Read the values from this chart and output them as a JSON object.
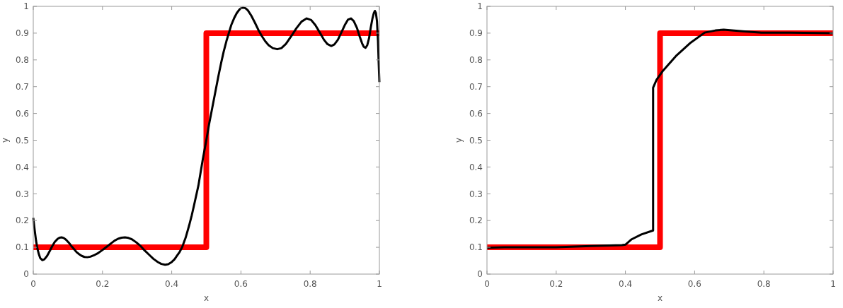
{
  "chart_data": [
    {
      "type": "line",
      "xlabel": "x",
      "ylabel": "y",
      "xlim": [
        0,
        1
      ],
      "ylim": [
        0,
        1
      ],
      "xticks": [
        0,
        0.2,
        0.4,
        0.6,
        0.8,
        1
      ],
      "yticks": [
        0,
        0.1,
        0.2,
        0.3,
        0.4,
        0.5,
        0.6,
        0.7,
        0.8,
        0.9,
        1
      ],
      "series": [
        {
          "type": "step",
          "color": "#ff0000",
          "x": [
            0,
            0.5,
            1
          ],
          "values": [
            0.1,
            0.9,
            0.9
          ]
        },
        {
          "type": "line",
          "color": "#000000",
          "x": [
            0,
            0.004,
            0.008,
            0.012,
            0.016,
            0.02,
            0.026,
            0.032,
            0.04,
            0.048,
            0.055,
            0.062,
            0.07,
            0.076,
            0.082,
            0.088,
            0.095,
            0.103,
            0.11,
            0.118,
            0.125,
            0.133,
            0.14,
            0.148,
            0.156,
            0.165,
            0.175,
            0.188,
            0.2,
            0.213,
            0.225,
            0.235,
            0.245,
            0.255,
            0.265,
            0.275,
            0.285,
            0.297,
            0.31,
            0.322,
            0.335,
            0.347,
            0.36,
            0.37,
            0.381,
            0.39,
            0.4,
            0.408,
            0.415,
            0.423,
            0.43,
            0.44,
            0.45,
            0.458,
            0.465,
            0.477,
            0.49,
            0.5,
            0.508,
            0.517,
            0.526,
            0.535,
            0.543,
            0.55,
            0.558,
            0.565,
            0.572,
            0.58,
            0.588,
            0.595,
            0.6,
            0.606,
            0.613,
            0.62,
            0.63,
            0.64,
            0.65,
            0.66,
            0.67,
            0.68,
            0.692,
            0.705,
            0.717,
            0.73,
            0.745,
            0.76,
            0.775,
            0.79,
            0.803,
            0.815,
            0.828,
            0.84,
            0.85,
            0.861,
            0.87,
            0.88,
            0.89,
            0.9,
            0.909,
            0.918,
            0.926,
            0.935,
            0.943,
            0.95,
            0.955,
            0.96,
            0.965,
            0.97,
            0.975,
            0.98,
            0.984,
            0.987,
            0.99,
            0.993,
            0.996,
            0.998,
            1
          ],
          "values": [
            0.21,
            0.165,
            0.125,
            0.095,
            0.075,
            0.06,
            0.052,
            0.055,
            0.068,
            0.087,
            0.105,
            0.12,
            0.131,
            0.136,
            0.137,
            0.135,
            0.128,
            0.117,
            0.105,
            0.093,
            0.082,
            0.074,
            0.068,
            0.064,
            0.063,
            0.065,
            0.07,
            0.079,
            0.09,
            0.103,
            0.115,
            0.125,
            0.132,
            0.136,
            0.137,
            0.135,
            0.13,
            0.119,
            0.105,
            0.088,
            0.072,
            0.057,
            0.045,
            0.038,
            0.035,
            0.037,
            0.045,
            0.055,
            0.068,
            0.083,
            0.1,
            0.135,
            0.18,
            0.22,
            0.26,
            0.33,
            0.43,
            0.5,
            0.56,
            0.62,
            0.68,
            0.74,
            0.79,
            0.83,
            0.87,
            0.9,
            0.93,
            0.955,
            0.975,
            0.987,
            0.993,
            0.995,
            0.993,
            0.985,
            0.965,
            0.94,
            0.913,
            0.89,
            0.87,
            0.855,
            0.844,
            0.84,
            0.844,
            0.86,
            0.888,
            0.918,
            0.943,
            0.955,
            0.949,
            0.93,
            0.902,
            0.875,
            0.859,
            0.852,
            0.858,
            0.875,
            0.902,
            0.93,
            0.95,
            0.955,
            0.945,
            0.92,
            0.888,
            0.862,
            0.849,
            0.845,
            0.855,
            0.88,
            0.92,
            0.955,
            0.975,
            0.983,
            0.975,
            0.945,
            0.87,
            0.79,
            0.717
          ]
        }
      ]
    },
    {
      "type": "line",
      "xlabel": "x",
      "ylabel": "y",
      "xlim": [
        0,
        1
      ],
      "ylim": [
        0,
        1
      ],
      "xticks": [
        0,
        0.2,
        0.4,
        0.6,
        0.8,
        1
      ],
      "yticks": [
        0,
        0.1,
        0.2,
        0.3,
        0.4,
        0.5,
        0.6,
        0.7,
        0.8,
        0.9,
        1
      ],
      "series": [
        {
          "type": "step",
          "color": "#ff0000",
          "x": [
            0,
            0.5,
            1
          ],
          "values": [
            0.1,
            0.9,
            0.9
          ]
        },
        {
          "type": "line",
          "color": "#000000",
          "x": [
            0,
            0.05,
            0.1,
            0.2,
            0.3,
            0.39,
            0.4,
            0.418,
            0.446,
            0.48,
            0.48,
            0.49,
            0.507,
            0.548,
            0.589,
            0.629,
            0.66,
            0.684,
            0.738,
            0.793,
            0.875,
            1
          ],
          "values": [
            0.098,
            0.1,
            0.1,
            0.1,
            0.105,
            0.108,
            0.11,
            0.13,
            0.148,
            0.163,
            0.696,
            0.726,
            0.757,
            0.817,
            0.865,
            0.902,
            0.91,
            0.913,
            0.907,
            0.902,
            0.902,
            0.9
          ]
        }
      ]
    }
  ]
}
